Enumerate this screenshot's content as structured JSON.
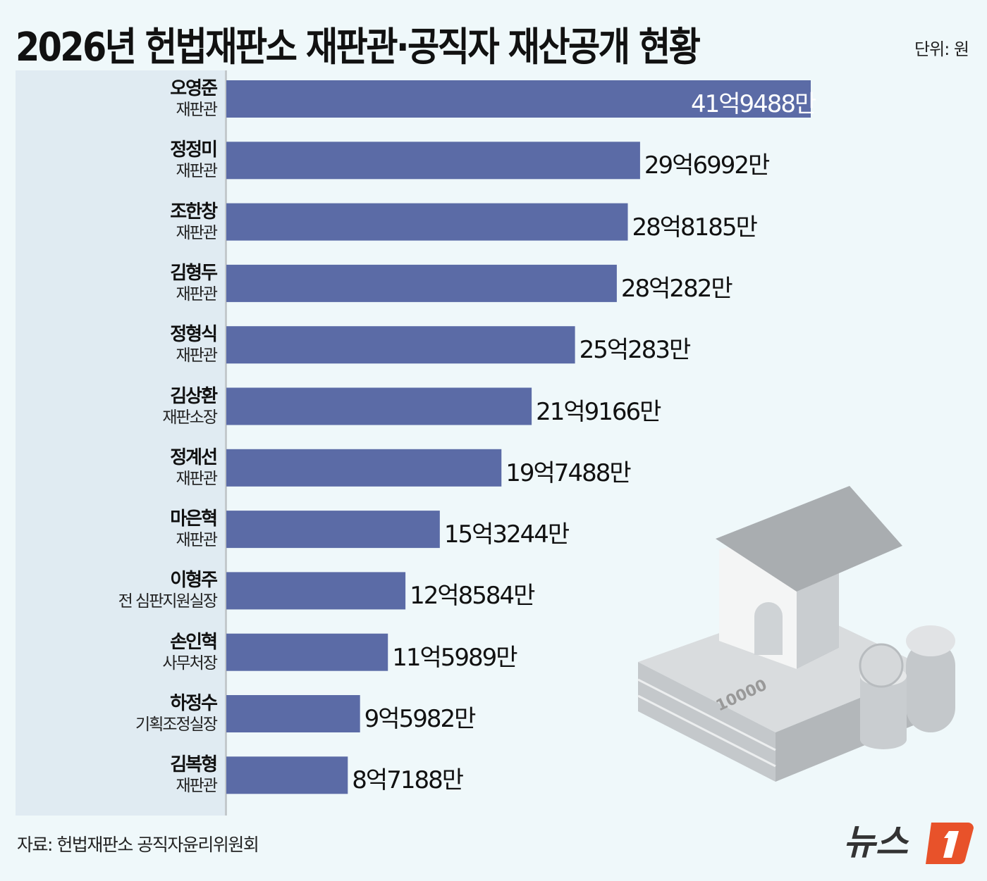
{
  "chart_data": {
    "type": "bar",
    "orientation": "horizontal",
    "title": "2026년 헌법재판소 재판관·공직자 재산공개 현황",
    "unit": "단위: 원",
    "categories": [
      {
        "name": "오영준",
        "role": "재판관"
      },
      {
        "name": "정정미",
        "role": "재판관"
      },
      {
        "name": "조한창",
        "role": "재판관"
      },
      {
        "name": "김형두",
        "role": "재판관"
      },
      {
        "name": "정형식",
        "role": "재판관"
      },
      {
        "name": "김상환",
        "role": "재판소장"
      },
      {
        "name": "정계선",
        "role": "재판관"
      },
      {
        "name": "마은혁",
        "role": "재판관"
      },
      {
        "name": "이형주",
        "role": "전 심판지원실장"
      },
      {
        "name": "손인혁",
        "role": "사무처장"
      },
      {
        "name": "하정수",
        "role": "기획조정실장"
      },
      {
        "name": "김복형",
        "role": "재판관"
      }
    ],
    "values_eok_won": [
      41.9488,
      29.6992,
      28.8185,
      28.0282,
      25.0283,
      21.9166,
      19.7488,
      15.3244,
      12.8584,
      11.5989,
      9.5982,
      8.7188
    ],
    "data_labels": [
      "41억9488만",
      "29억6992만",
      "28억8185만",
      "28억282만",
      "25억283만",
      "21억9166만",
      "19억7488만",
      "15억3244만",
      "12억8584만",
      "11억5989만",
      "9억5982만",
      "8억7188만"
    ],
    "bar_color": "#5b6ba6",
    "grid": false
  },
  "source": "자료: 헌법재판소 공직자윤리위원회",
  "logo": "뉴스1",
  "colors": {
    "background": "#eff8fa",
    "panel": "#e0ebf2",
    "logo_accent": "#e8522a"
  }
}
